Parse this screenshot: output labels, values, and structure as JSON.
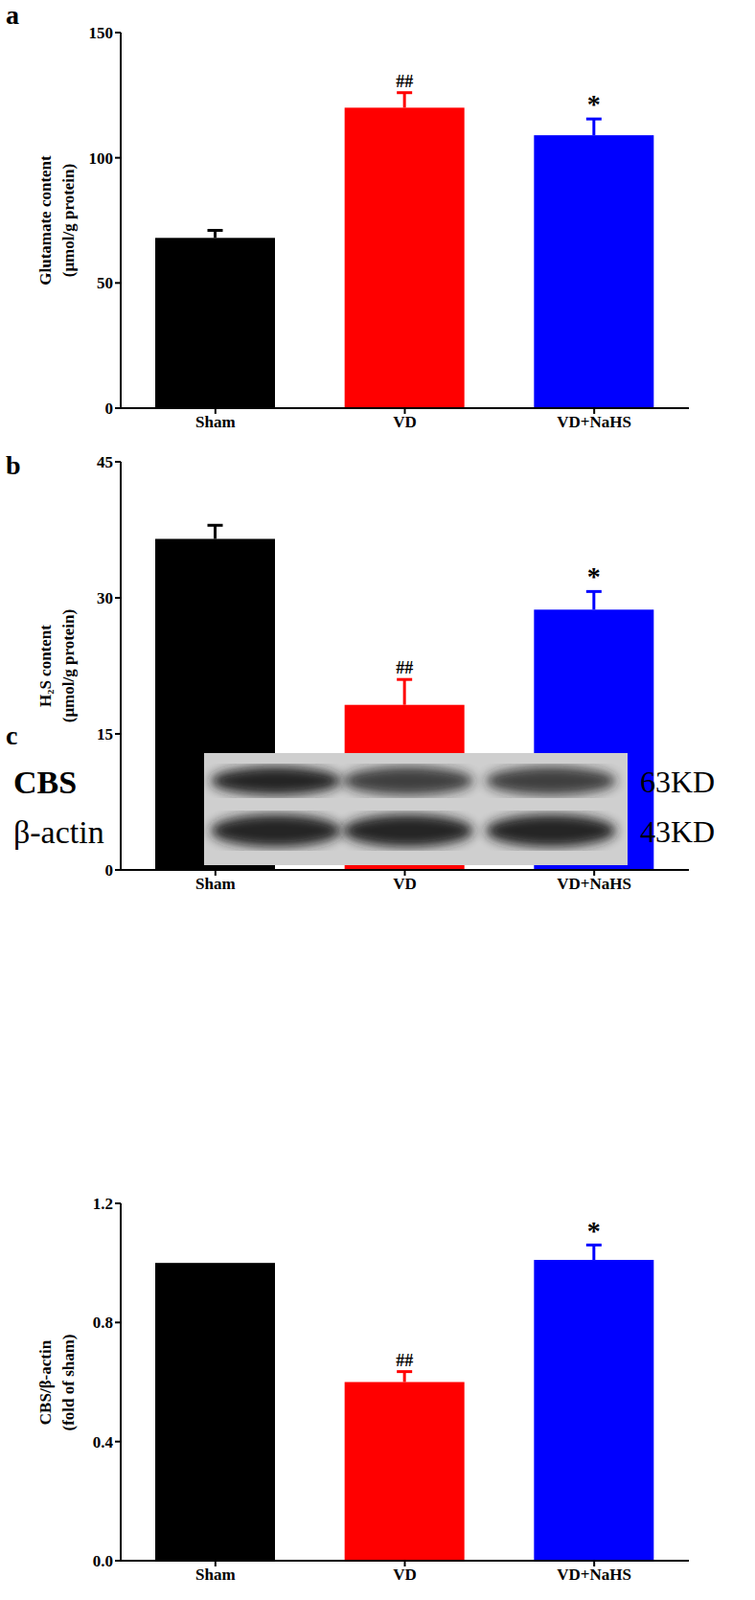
{
  "chart_data": [
    {
      "type": "bar",
      "panel_label": "a",
      "y_label": [
        "Glutamate content",
        "(μmol/g protein)"
      ],
      "categories": [
        "Sham",
        "VD",
        "VD+NaHS"
      ],
      "values": [
        68,
        120,
        109
      ],
      "errors": [
        3,
        6,
        6.5
      ],
      "annotations": [
        null,
        "##",
        "*"
      ],
      "colors": [
        "#000000",
        "#ff0000",
        "#0000ff"
      ],
      "ylim": [
        0,
        150
      ],
      "yticks": [
        0,
        50,
        100,
        150
      ],
      "grid": false
    },
    {
      "type": "bar",
      "panel_label": "b",
      "y_label": [
        "H₂S content",
        "(μmol/g protein)"
      ],
      "categories": [
        "Sham",
        "VD",
        "VD+NaHS"
      ],
      "values": [
        36.5,
        18.2,
        28.7
      ],
      "errors": [
        1.5,
        2.8,
        2.0
      ],
      "annotations": [
        null,
        "##",
        "*"
      ],
      "colors": [
        "#000000",
        "#ff0000",
        "#0000ff"
      ],
      "ylim": [
        0,
        45
      ],
      "yticks": [
        0,
        15,
        30,
        45
      ],
      "grid": false
    },
    {
      "type": "bar",
      "panel_label": "c",
      "y_label": [
        "CBS/β-actin",
        "(fold of sham)"
      ],
      "categories": [
        "Sham",
        "VD",
        "VD+NaHS"
      ],
      "values": [
        1.0,
        0.6,
        1.01
      ],
      "errors": [
        null,
        0.035,
        0.05
      ],
      "annotations": [
        null,
        "##",
        "*"
      ],
      "colors": [
        "#000000",
        "#ff0000",
        "#0000ff"
      ],
      "ylim": [
        0,
        1.2
      ],
      "yticks": [
        {
          "value": 0,
          "label": "0.0"
        },
        0.4,
        0.8,
        1.2
      ],
      "grid": false,
      "blot": {
        "rows": [
          {
            "label": "CBS",
            "size": "63KD"
          },
          {
            "label": "β-actin",
            "size": "43KD"
          }
        ]
      }
    }
  ]
}
